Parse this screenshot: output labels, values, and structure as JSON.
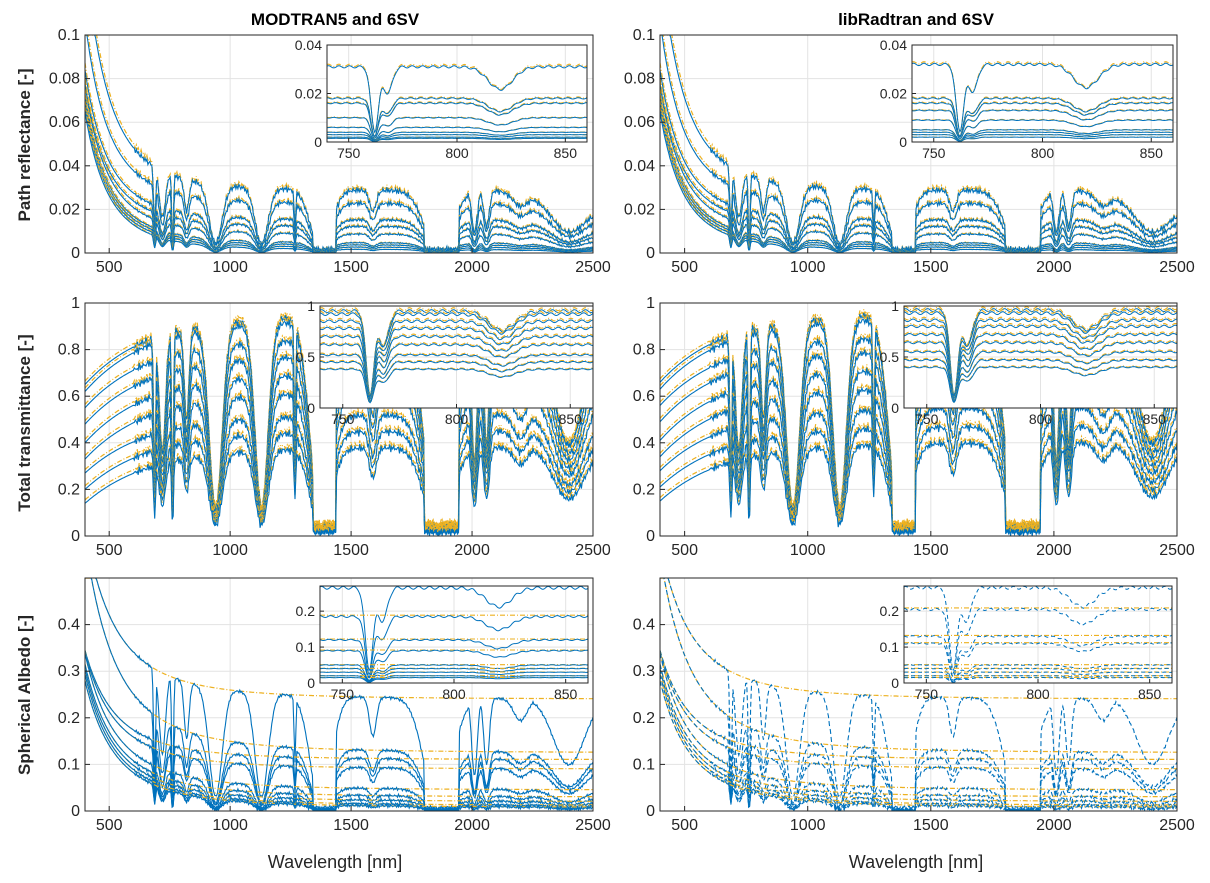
{
  "figure": {
    "column_titles": [
      "MODTRAN5 and 6SV",
      "libRadtran and 6SV"
    ],
    "row_ylabels": [
      "Path reflectance [-]",
      "Total transmittance [-]",
      "Spherical Albedo [-]"
    ],
    "xlabel": "Wavelength [nm]"
  },
  "colors": {
    "blue": "#0072BD",
    "orange": "#EDB120",
    "grid": "#e3e3e3",
    "axis": "#262626"
  },
  "chart_data": [
    {
      "type": "line",
      "panel": "MODTRAN5 and 6SV / Path reflectance",
      "title": "MODTRAN5 and 6SV",
      "xlabel": "",
      "ylabel": "Path reflectance [-]",
      "xlim": [
        400,
        2500
      ],
      "ylim": [
        0,
        0.1
      ],
      "xticks": [
        500,
        1000,
        1500,
        2000,
        2500
      ],
      "yticks": [
        0,
        0.02,
        0.04,
        0.06,
        0.08,
        0.1
      ],
      "yticklabels": [
        "0",
        "0.02",
        "0.04",
        "0.06",
        "0.08",
        "0.1"
      ],
      "variable": "path",
      "line_style": "solid",
      "plateaus": [
        0.0285,
        0.0225,
        0.015,
        0.012,
        0.0085,
        0.0045,
        0.0035,
        0.0025,
        0.0015
      ],
      "start": [
        0.095,
        0.074,
        0.057,
        0.052,
        0.05,
        0.046,
        0.044,
        0.042,
        0.04
      ],
      "grid": true,
      "inset": {
        "xlim": [
          740,
          860
        ],
        "ylim": [
          0,
          0.04
        ],
        "xticks": [
          750,
          800,
          850
        ],
        "yticks": [
          0,
          0.02,
          0.04
        ],
        "yticklabels": [
          "0",
          "0.02",
          "0.04"
        ],
        "levels": [
          0.031,
          0.018,
          0.016,
          0.01,
          0.006,
          0.004,
          0.003,
          0.002,
          0.0015
        ]
      }
    },
    {
      "type": "line",
      "panel": "libRadtran and 6SV / Path reflectance",
      "title": "libRadtran and 6SV",
      "xlabel": "",
      "ylabel": "",
      "xlim": [
        400,
        2500
      ],
      "ylim": [
        0,
        0.1
      ],
      "xticks": [
        500,
        1000,
        1500,
        2000,
        2500
      ],
      "yticks": [
        0,
        0.02,
        0.04,
        0.06,
        0.08,
        0.1
      ],
      "yticklabels": [
        "0",
        "0.02",
        "0.04",
        "0.06",
        "0.08",
        "0.1"
      ],
      "variable": "path",
      "line_style": "solid",
      "plateaus": [
        0.0285,
        0.0225,
        0.015,
        0.012,
        0.0085,
        0.0045,
        0.0035,
        0.0025,
        0.0015
      ],
      "start": [
        0.095,
        0.074,
        0.057,
        0.052,
        0.05,
        0.046,
        0.044,
        0.042,
        0.04
      ],
      "grid": true,
      "inset": {
        "xlim": [
          740,
          860
        ],
        "ylim": [
          0,
          0.04
        ],
        "xticks": [
          750,
          800,
          850
        ],
        "yticks": [
          0,
          0.02,
          0.04
        ],
        "yticklabels": [
          "0",
          "0.02",
          "0.04"
        ],
        "levels": [
          0.032,
          0.018,
          0.016,
          0.013,
          0.009,
          0.005,
          0.004,
          0.003,
          0.002
        ]
      }
    },
    {
      "type": "line",
      "panel": "MODTRAN5 and 6SV / Total transmittance",
      "title": "",
      "xlabel": "",
      "ylabel": "Total transmittance [-]",
      "xlim": [
        400,
        2500
      ],
      "ylim": [
        0,
        1
      ],
      "xticks": [
        500,
        1000,
        1500,
        2000,
        2500
      ],
      "yticks": [
        0,
        0.2,
        0.4,
        0.6,
        0.8,
        1
      ],
      "yticklabels": [
        "0",
        "0.2",
        "0.4",
        "0.6",
        "0.8",
        "1"
      ],
      "variable": "trans",
      "line_style": "solid",
      "plateaus": [
        0.95,
        0.93,
        0.85,
        0.78,
        0.7,
        0.62,
        0.52,
        0.45,
        0.38
      ],
      "start": [
        0.65,
        0.62,
        0.55,
        0.48,
        0.4,
        0.33,
        0.27,
        0.2,
        0.14
      ],
      "grid": true,
      "inset": {
        "xlim": [
          740,
          860
        ],
        "ylim": [
          0,
          1
        ],
        "xticks": [
          750,
          800,
          850
        ],
        "yticks": [
          0,
          0.5,
          1
        ],
        "yticklabels": [
          "0",
          "0.5",
          "1"
        ],
        "levels": [
          0.95,
          0.92,
          0.85,
          0.78,
          0.7,
          0.62,
          0.52,
          0.45,
          0.38
        ]
      }
    },
    {
      "type": "line",
      "panel": "libRadtran and 6SV / Total transmittance",
      "title": "",
      "xlabel": "",
      "ylabel": "",
      "xlim": [
        400,
        2500
      ],
      "ylim": [
        0,
        1
      ],
      "xticks": [
        500,
        1000,
        1500,
        2000,
        2500
      ],
      "yticks": [
        0,
        0.2,
        0.4,
        0.6,
        0.8,
        1
      ],
      "yticklabels": [
        "0",
        "0.2",
        "0.4",
        "0.6",
        "0.8",
        "1"
      ],
      "variable": "trans",
      "line_style": "solid",
      "plateaus": [
        0.96,
        0.94,
        0.86,
        0.8,
        0.72,
        0.64,
        0.55,
        0.47,
        0.4
      ],
      "start": [
        0.66,
        0.63,
        0.56,
        0.49,
        0.41,
        0.34,
        0.28,
        0.21,
        0.15
      ],
      "grid": true,
      "inset": {
        "xlim": [
          740,
          860
        ],
        "ylim": [
          0,
          1
        ],
        "xticks": [
          750,
          800,
          850
        ],
        "yticks": [
          0,
          0.5,
          1
        ],
        "yticklabels": [
          "0",
          "0.5",
          "1"
        ],
        "levels": [
          0.96,
          0.93,
          0.86,
          0.8,
          0.72,
          0.64,
          0.55,
          0.47,
          0.4
        ]
      }
    },
    {
      "type": "line",
      "panel": "MODTRAN5 and 6SV / Spherical Albedo",
      "title": "",
      "xlabel": "Wavelength [nm]",
      "ylabel": "Spherical Albedo [-]",
      "xlim": [
        400,
        2500
      ],
      "ylim": [
        0,
        0.5
      ],
      "xticks": [
        500,
        1000,
        1500,
        2000,
        2500
      ],
      "yticks": [
        0,
        0.1,
        0.2,
        0.3,
        0.4
      ],
      "yticklabels": [
        "0",
        "0.1",
        "0.2",
        "0.3",
        "0.4"
      ],
      "variable": "albedo",
      "line_style": "solid",
      "plateaus": [
        0.24,
        0.125,
        0.11,
        0.09,
        0.045,
        0.03,
        0.02,
        0.012,
        0.008
      ],
      "start": [
        0.46,
        0.4,
        0.25,
        0.24,
        0.22,
        0.2,
        0.19,
        0.18,
        0.17
      ],
      "grid": true,
      "inset": {
        "xlim": [
          740,
          860
        ],
        "ylim": [
          0,
          0.27
        ],
        "xticks": [
          750,
          800,
          850
        ],
        "yticks": [
          0,
          0.1,
          0.2
        ],
        "yticklabels": [
          "0",
          "0.1",
          "0.2"
        ],
        "levels": [
          0.265,
          0.185,
          0.12,
          0.09,
          0.05,
          0.04,
          0.03,
          0.02,
          0.015
        ]
      }
    },
    {
      "type": "line",
      "panel": "libRadtran and 6SV / Spherical Albedo",
      "title": "",
      "xlabel": "Wavelength [nm]",
      "ylabel": "",
      "xlim": [
        400,
        2500
      ],
      "ylim": [
        0,
        0.5
      ],
      "xticks": [
        500,
        1000,
        1500,
        2000,
        2500
      ],
      "yticks": [
        0,
        0.1,
        0.2,
        0.3,
        0.4
      ],
      "yticklabels": [
        "0",
        "0.1",
        "0.2",
        "0.3",
        "0.4"
      ],
      "variable": "albedo",
      "line_style": "dashed",
      "plateaus": [
        0.24,
        0.125,
        0.11,
        0.09,
        0.045,
        0.03,
        0.02,
        0.012,
        0.008
      ],
      "start": [
        0.44,
        0.38,
        0.25,
        0.24,
        0.22,
        0.2,
        0.19,
        0.18,
        0.17
      ],
      "grid": true,
      "inset": {
        "xlim": [
          740,
          860
        ],
        "ylim": [
          0,
          0.27
        ],
        "xticks": [
          750,
          800,
          850
        ],
        "yticks": [
          0,
          0.1,
          0.2
        ],
        "yticklabels": [
          "0",
          "0.1",
          "0.2"
        ],
        "levels": [
          0.265,
          0.205,
          0.13,
          0.11,
          0.05,
          0.04,
          0.03,
          0.02,
          0.015
        ]
      }
    }
  ]
}
